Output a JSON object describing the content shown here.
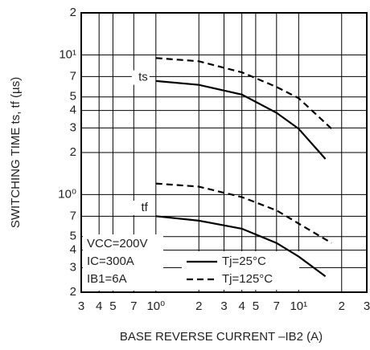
{
  "chart_data": {
    "type": "line",
    "y_label": "SWITCHING TIME   ts, tf (µs)",
    "x_label": "BASE REVERSE CURRENT   –IB2 (A)",
    "log_x": true,
    "log_y": true,
    "grid": true,
    "xlim": [
      0.3,
      30
    ],
    "xticks": [
      {
        "value": 0.3,
        "label": "3"
      },
      {
        "value": 0.4,
        "label": "4"
      },
      {
        "value": 0.5,
        "label": "5"
      },
      {
        "value": 0.7,
        "label": "7"
      },
      {
        "value": 1,
        "label": "10⁰"
      },
      2,
      3,
      4,
      5,
      7,
      {
        "value": 10,
        "label": "10¹"
      },
      {
        "value": 20,
        "label": "2"
      },
      {
        "value": 30,
        "label": "3"
      }
    ],
    "ylim": [
      0.2,
      20
    ],
    "yticks": [
      {
        "value": 0.2,
        "label": "2"
      },
      {
        "value": 0.3,
        "label": "3"
      },
      {
        "value": 0.4,
        "label": "4"
      },
      {
        "value": 0.5,
        "label": "5"
      },
      {
        "value": 0.7,
        "label": "7"
      },
      {
        "value": 1,
        "label": "10⁰"
      },
      2,
      3,
      4,
      5,
      7,
      {
        "value": 10,
        "label": "10¹"
      },
      {
        "value": 20,
        "label": "2"
      }
    ],
    "curve_labels": [
      "ts",
      "tf"
    ],
    "conditions": [
      "VCC=200V",
      "IC=300A",
      "IB1=6A"
    ],
    "series": [
      {
        "name": "Tj=25°C",
        "color": "#000000",
        "dashed": false,
        "curves": [
          {
            "x": [
              1,
              2,
              4,
              7,
              10,
              15.4
            ],
            "values": [
              6.5,
              6.1,
              5.2,
              3.85,
              2.96,
              1.8
            ]
          },
          {
            "x": [
              1,
              2,
              4,
              7,
              10,
              15.4
            ],
            "values": [
              0.7,
              0.65,
              0.57,
              0.45,
              0.36,
              0.26
            ]
          }
        ]
      },
      {
        "name": "Tj=125°C",
        "color": "#000000",
        "dashed": true,
        "curves": [
          {
            "x": [
              1,
              2,
              4,
              7,
              10,
              17
            ],
            "values": [
              9.5,
              9.0,
              7.5,
              5.9,
              4.9,
              2.96
            ]
          },
          {
            "x": [
              1,
              2,
              4,
              7,
              10,
              17
            ],
            "values": [
              1.2,
              1.14,
              0.96,
              0.77,
              0.62,
              0.45
            ]
          }
        ]
      }
    ]
  }
}
